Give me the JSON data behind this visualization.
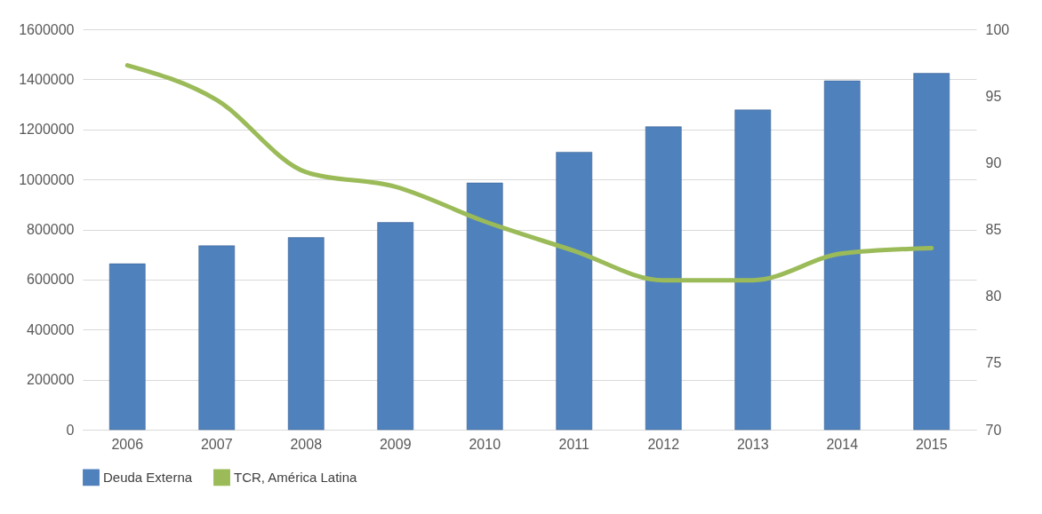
{
  "chart_data": {
    "type": "bar",
    "categories": [
      "2006",
      "2007",
      "2008",
      "2009",
      "2010",
      "2011",
      "2012",
      "2013",
      "2014",
      "2015"
    ],
    "series": [
      {
        "name": "Deuda Externa",
        "color": "#4f81bd",
        "values": [
          663000,
          735000,
          768000,
          828000,
          986000,
          1109000,
          1211000,
          1278000,
          1394000,
          1424000
        ]
      },
      {
        "name": "TCR, América Latina",
        "type": "line",
        "axis": "y2",
        "color": "#9bbb59",
        "values": [
          97.3,
          94.7,
          89.3,
          88.2,
          85.6,
          83.4,
          81.2,
          81.2,
          83.2,
          83.6
        ]
      }
    ],
    "ylim": [
      0,
      1600000
    ],
    "yticks": [
      0,
      200000,
      400000,
      600000,
      800000,
      1000000,
      1200000,
      1400000,
      1600000
    ],
    "y2lim": [
      70,
      100
    ],
    "y2ticks": [
      70,
      75,
      80,
      85,
      90,
      95,
      100
    ],
    "grid": "y",
    "legend": "bottom"
  }
}
